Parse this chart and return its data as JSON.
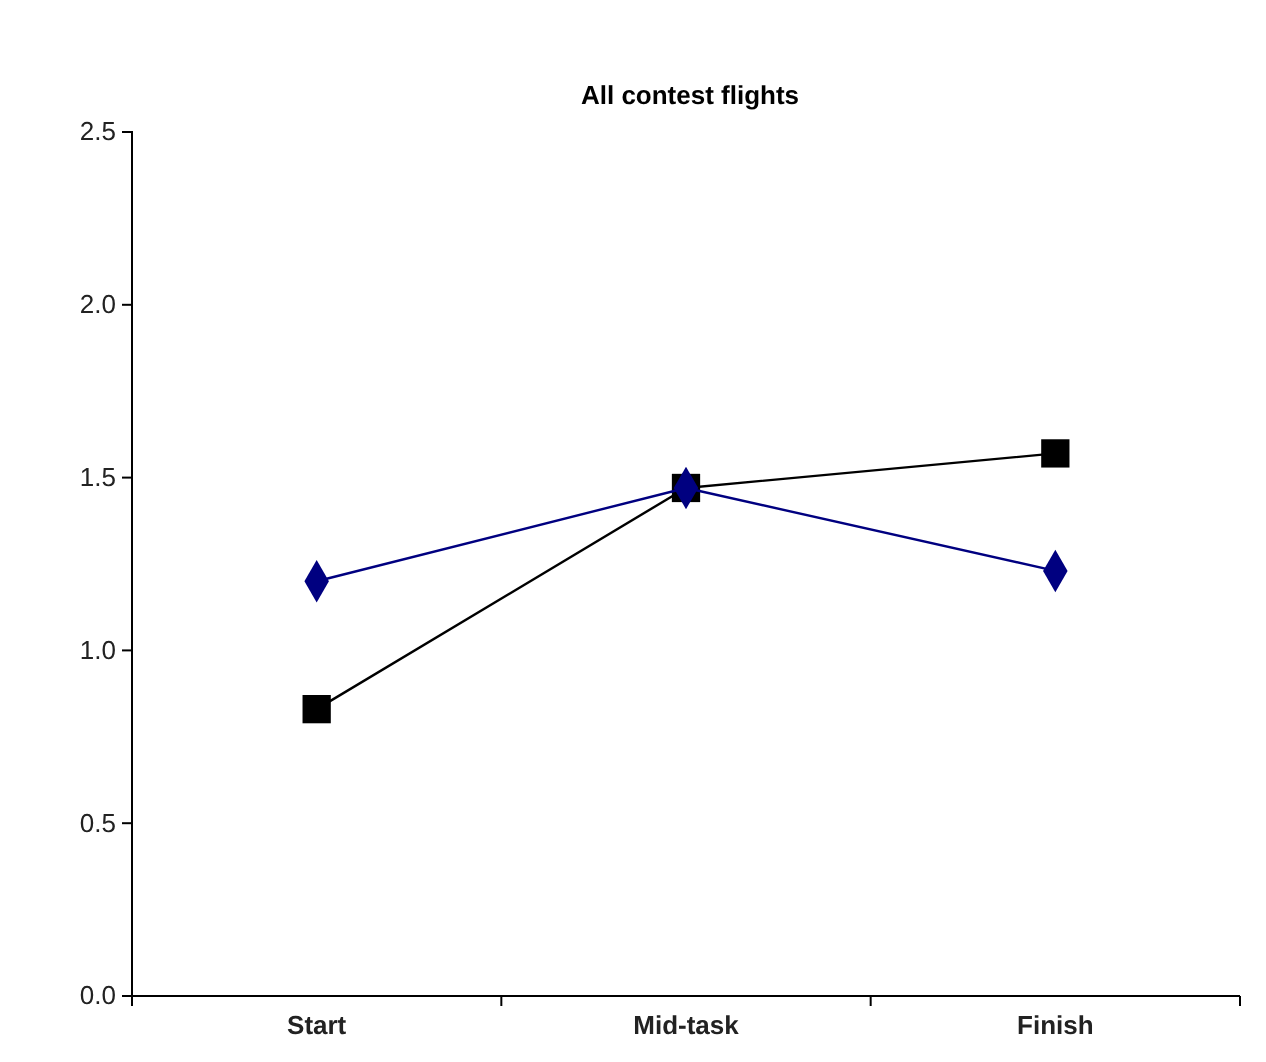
{
  "chart_data": {
    "type": "line",
    "title": "All contest flights",
    "categories": [
      "Start",
      "Mid-task",
      "Finish"
    ],
    "series": [
      {
        "color": "#000080",
        "marker": "diamond",
        "values": [
          1.2,
          1.47,
          1.23
        ]
      },
      {
        "color": "#000000",
        "marker": "square",
        "values": [
          0.83,
          1.47,
          1.57
        ]
      }
    ],
    "ylim": [
      0,
      2.5
    ],
    "yticks": [
      {
        "value": 0,
        "label": "0.0"
      },
      {
        "value": 0.5,
        "label": "0.5"
      },
      {
        "value": 1,
        "label": "1.0"
      },
      {
        "value": 1.5,
        "label": "1.5"
      },
      {
        "value": 2,
        "label": "2.0"
      },
      {
        "value": 2.5,
        "label": "2.5"
      }
    ],
    "grid": false,
    "legend": false
  }
}
